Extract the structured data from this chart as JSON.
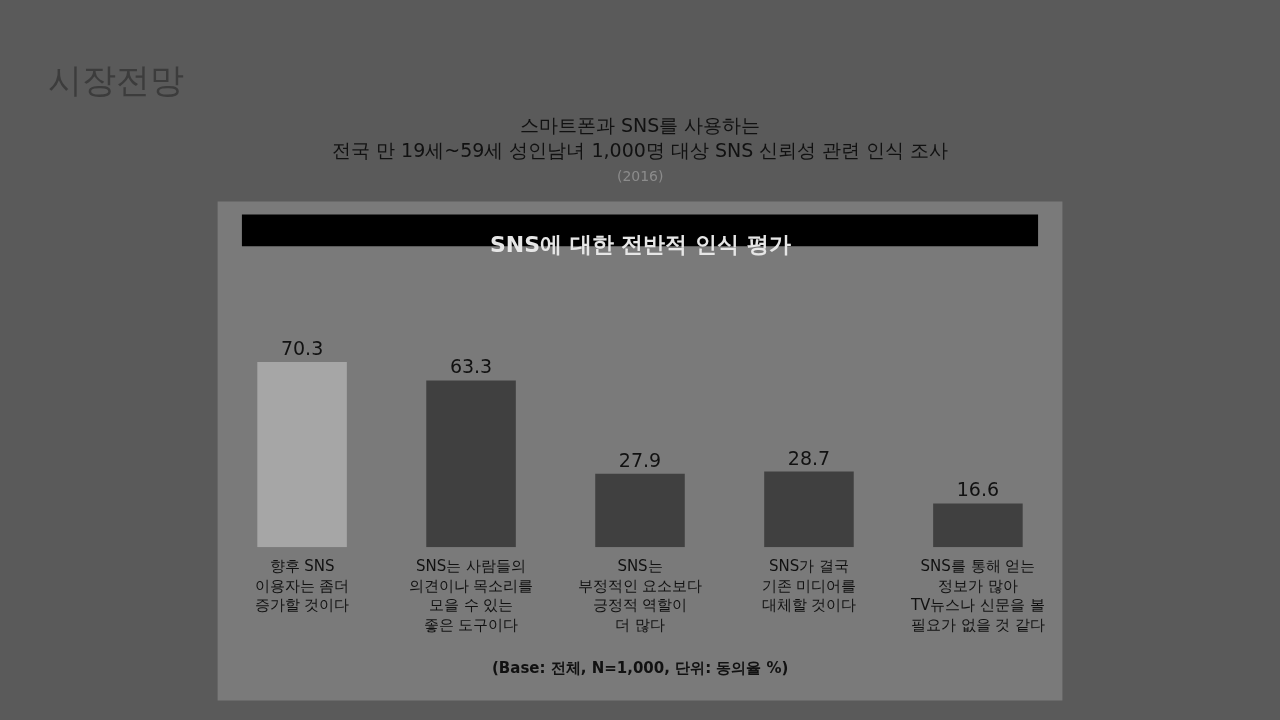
{
  "chart_data": {
    "type": "bar",
    "title": "SNS에 대한 전반적 인식 평가",
    "subtitle": "스마트폰과 SNS를 사용하는\n전국 만 19세~59세 성인남녀 1,000명 대상 SNS 신뢰성 관련 인식 조사\n(2016)",
    "categories": [
      "향후 SNS\n이용자는 좀더\n증가할 것이다",
      "SNS는 사람들의\n의견이나 목소리를\n모을 수 있는\n좋은 도구이다",
      "SNS는\n부정적인 요소보다\n긍정적 역할이\n더 많다",
      "SNS가 결국\n기존 미디어를\n대체할 것이다",
      "SNS를 통해 얻는\n정보가 많아\nTV뉴스나 신문을 볼\n필요가 없을 것 같다"
    ],
    "values": [
      70.3,
      63.3,
      27.9,
      28.7,
      16.6
    ],
    "colors": [
      "#a6a6a6",
      "#404040",
      "#404040",
      "#404040",
      "#404040"
    ],
    "data_labels": true,
    "annotations": [
      "시장전망",
      "(Base: 전체, N=1,000, 단위: 동의율 %)"
    ]
  }
}
